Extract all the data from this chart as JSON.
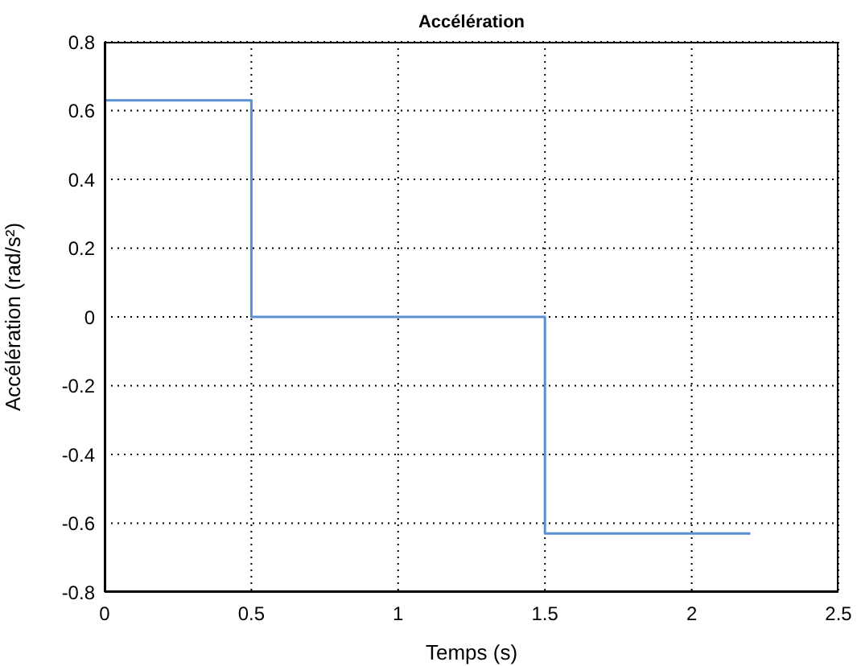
{
  "chart_data": {
    "type": "step",
    "title": "Accélération",
    "xlabel": "Temps (s)",
    "ylabel": "Accélération (rad/s²)",
    "x": [
      0,
      0.5,
      1.5,
      2.2
    ],
    "series": [
      {
        "color": "#5b8fd4",
        "values": [
          0.63,
          0,
          -0.63,
          -0.63
        ]
      }
    ],
    "xlim": [
      0,
      2.5
    ],
    "xticks": [
      0,
      0.5,
      1,
      1.5,
      2,
      2.5
    ],
    "ylim": [
      -0.8,
      0.8
    ],
    "yticks": [
      -0.8,
      -0.6,
      -0.4,
      -0.2,
      0,
      0.2,
      0.4,
      0.6,
      0.8
    ],
    "grid": true
  }
}
